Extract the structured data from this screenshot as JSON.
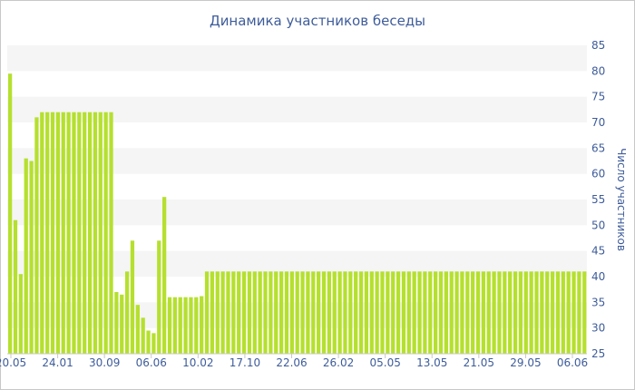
{
  "chart_data": {
    "type": "bar",
    "title": "Динамика участников беседы",
    "ylabel": "Число участников",
    "ylim": [
      25,
      85
    ],
    "yticks": [
      25,
      30,
      35,
      40,
      45,
      50,
      55,
      60,
      65,
      70,
      75,
      80,
      85
    ],
    "xtick_labels": [
      "20.05",
      "24.01",
      "30.09",
      "06.06",
      "10.02",
      "17.10",
      "22.06",
      "26.02",
      "05.05",
      "13.05",
      "21.05",
      "29.05",
      "06.06"
    ],
    "grid_bands": true,
    "values": [
      79.5,
      51,
      40.5,
      63,
      62.5,
      71,
      72,
      72,
      72,
      72,
      72,
      72,
      72,
      72,
      72,
      72,
      72,
      72,
      72,
      72,
      37,
      36.5,
      41,
      47,
      34.5,
      32,
      29.5,
      29,
      47,
      55.5,
      36,
      36,
      36,
      36,
      36,
      36,
      36.2,
      41,
      41,
      41,
      41,
      41,
      41,
      41,
      41,
      41,
      41,
      41,
      41,
      41,
      41,
      41,
      41,
      41,
      41,
      41,
      41,
      41,
      41,
      41,
      41,
      41,
      41,
      41,
      41,
      41,
      41,
      41,
      41,
      41,
      41,
      41,
      41,
      41,
      41,
      41,
      41,
      41,
      41,
      41,
      41,
      41,
      41,
      41,
      41,
      41,
      41,
      41,
      41,
      41,
      41,
      41,
      41,
      41,
      41,
      41,
      41,
      41,
      41,
      41,
      41,
      41,
      41,
      41,
      41,
      41,
      41,
      41,
      41
    ],
    "colors": {
      "bar": "#b5e02e",
      "band": "#f5f5f5",
      "text": "#3e5c9a",
      "axis": "#c8c8c8"
    }
  }
}
